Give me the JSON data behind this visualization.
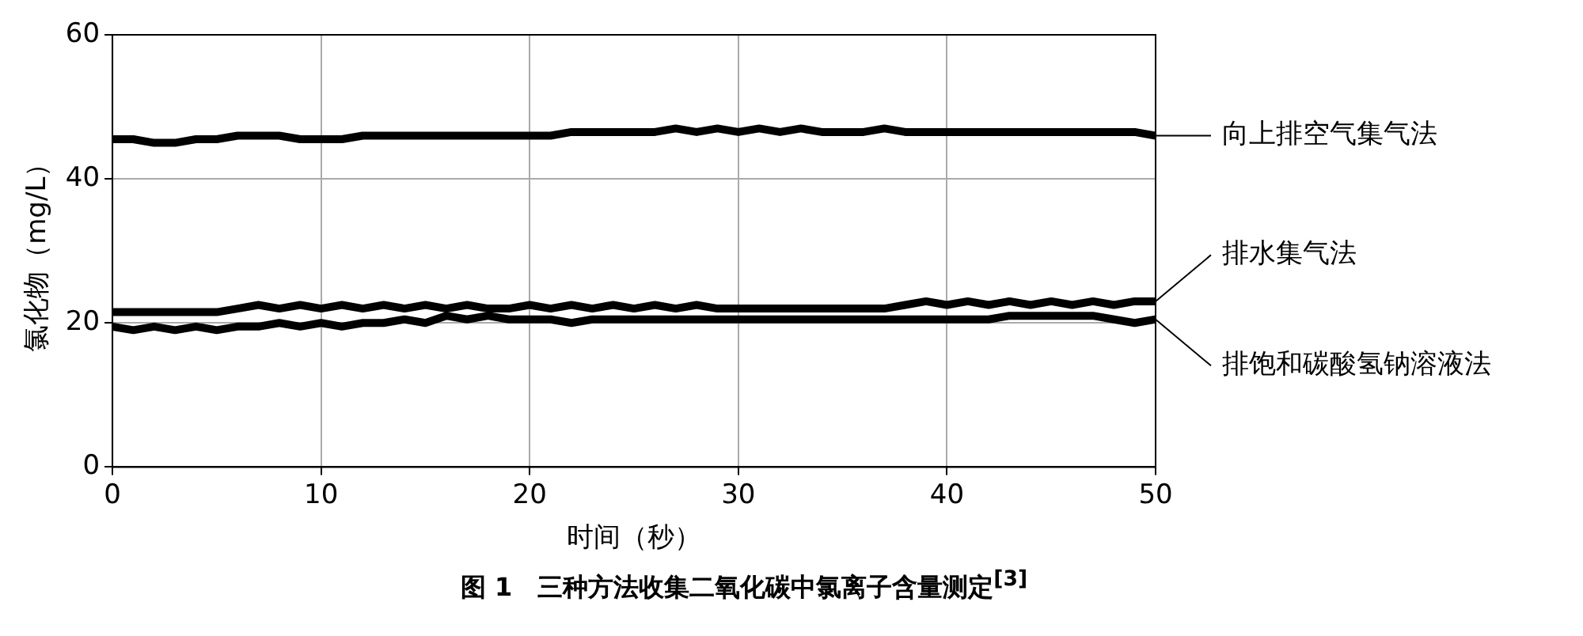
{
  "chart_data": {
    "type": "line",
    "title": "图 1　三种方法收集二氧化碳中氯离子含量测定$^{[3]}$",
    "xlabel": "时间（秒）",
    "ylabel": "氯化物（mg/L）",
    "x": [
      0,
      1,
      2,
      3,
      4,
      5,
      6,
      7,
      8,
      9,
      10,
      11,
      12,
      13,
      14,
      15,
      16,
      17,
      18,
      19,
      20,
      21,
      22,
      23,
      24,
      25,
      26,
      27,
      28,
      29,
      30,
      31,
      32,
      33,
      34,
      35,
      36,
      37,
      38,
      39,
      40,
      41,
      42,
      43,
      44,
      45,
      46,
      47,
      48,
      49,
      50
    ],
    "series": [
      {
        "name": "向上排空气集气法",
        "color": "#000000",
        "values": [
          45.5,
          45.5,
          45,
          45,
          45.5,
          45.5,
          46,
          46,
          46,
          45.5,
          45.5,
          45.5,
          46,
          46,
          46,
          46,
          46,
          46,
          46,
          46,
          46,
          46,
          46.5,
          46.5,
          46.5,
          46.5,
          46.5,
          47,
          46.5,
          47,
          46.5,
          47,
          46.5,
          47,
          46.5,
          46.5,
          46.5,
          47,
          46.5,
          46.5,
          46.5,
          46.5,
          46.5,
          46.5,
          46.5,
          46.5,
          46.5,
          46.5,
          46.5,
          46.5,
          46
        ]
      },
      {
        "name": "排水集气法",
        "color": "#000000",
        "values": [
          21.5,
          21.5,
          21.5,
          21.5,
          21.5,
          21.5,
          22,
          22.5,
          22,
          22.5,
          22,
          22.5,
          22,
          22.5,
          22,
          22.5,
          22,
          22.5,
          22,
          22,
          22.5,
          22,
          22.5,
          22,
          22.5,
          22,
          22.5,
          22,
          22.5,
          22,
          22,
          22,
          22,
          22,
          22,
          22,
          22,
          22,
          22.5,
          23,
          22.5,
          23,
          22.5,
          23,
          22.5,
          23,
          22.5,
          23,
          22.5,
          23,
          23
        ]
      },
      {
        "name": "排饱和碳酸氢钠溶液法",
        "color": "#000000",
        "values": [
          19.5,
          19,
          19.5,
          19,
          19.5,
          19,
          19.5,
          19.5,
          20,
          19.5,
          20,
          19.5,
          20,
          20,
          20.5,
          20,
          21,
          20.5,
          21,
          20.5,
          20.5,
          20.5,
          20,
          20.5,
          20.5,
          20.5,
          20.5,
          20.5,
          20.5,
          20.5,
          20.5,
          20.5,
          20.5,
          20.5,
          20.5,
          20.5,
          20.5,
          20.5,
          20.5,
          20.5,
          20.5,
          20.5,
          20.5,
          21,
          21,
          21,
          21,
          21,
          20.5,
          20,
          20.5
        ]
      }
    ],
    "xlim": [
      0,
      50
    ],
    "xticks": [
      0,
      10,
      20,
      30,
      40,
      50
    ],
    "ylim": [
      0,
      60
    ],
    "yticks": [
      0,
      20,
      40,
      60
    ],
    "grid": true,
    "legend": "right",
    "marker": "none",
    "line_style": "solid"
  }
}
